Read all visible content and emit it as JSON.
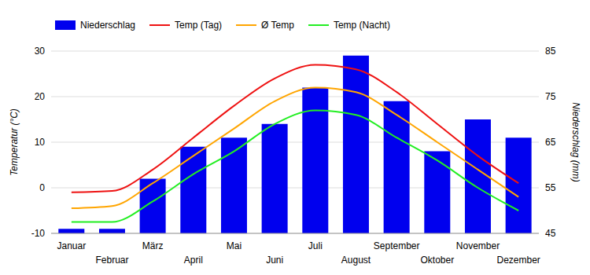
{
  "chart_data": {
    "type": "bar",
    "categories": [
      "Januar",
      "Februar",
      "März",
      "April",
      "Mai",
      "Juni",
      "Juli",
      "August",
      "September",
      "Oktober",
      "November",
      "Dezember"
    ],
    "y_label": "Temperatur (°C)",
    "y2_label": "Niederschlag (mm)",
    "ylim": [
      -10,
      30
    ],
    "yticks": [
      -10,
      0,
      10,
      20,
      30
    ],
    "y2lim": [
      45,
      85
    ],
    "y2ticks": [
      45,
      55,
      65,
      75,
      85
    ],
    "grid": true,
    "legend": "top-left",
    "series": [
      {
        "name": "Niederschlag",
        "type": "bar",
        "axis": "y2",
        "color": "#0000ee",
        "values": [
          46,
          46,
          57,
          64,
          66,
          69,
          77,
          84,
          74,
          63,
          70,
          66
        ]
      },
      {
        "name": "Temp (Tag)",
        "type": "line",
        "color": "#ee1111",
        "values": [
          -1,
          -0.7,
          4,
          11,
          18,
          24,
          27,
          26,
          21,
          14,
          7,
          1
        ]
      },
      {
        "name": "Ø Temp",
        "type": "line",
        "color": "#ffa500",
        "values": [
          -4.5,
          -4,
          1,
          7,
          13,
          19,
          22,
          21,
          16,
          10,
          4,
          -2
        ]
      },
      {
        "name": "Temp (Nacht)",
        "type": "line",
        "color": "#22ee22",
        "values": [
          -7.5,
          -7.5,
          -3,
          3,
          8,
          14,
          17,
          16,
          11,
          6,
          0,
          -5
        ]
      }
    ]
  }
}
